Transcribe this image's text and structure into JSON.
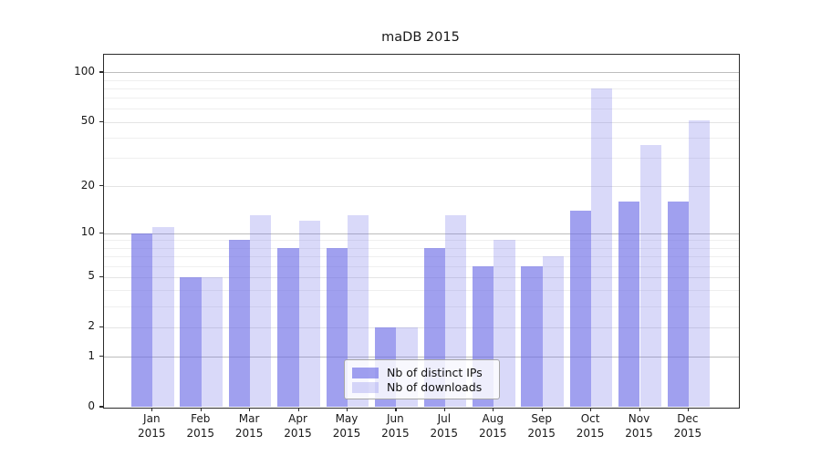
{
  "title": "maDB 2015",
  "chart_data": {
    "type": "bar",
    "title": "maDB 2015",
    "categories": [
      "Jan",
      "Feb",
      "Mar",
      "Apr",
      "May",
      "Jun",
      "Jul",
      "Aug",
      "Sep",
      "Oct",
      "Nov",
      "Dec"
    ],
    "year_label": "2015",
    "series": [
      {
        "name": "Nb of distinct IPs",
        "values": [
          10,
          5,
          9,
          8,
          8,
          2,
          8,
          6,
          6,
          14,
          16,
          16
        ],
        "fill_rgba": "rgba(105,105,230,0.63)",
        "swatch_hex": "#a0a0ef"
      },
      {
        "name": "Nb of downloads",
        "values": [
          11,
          5,
          13,
          12,
          13,
          2,
          13,
          9,
          7,
          80,
          36,
          51
        ],
        "fill_rgba": "rgba(105,105,230,0.25)",
        "swatch_hex": "#d9d9f8"
      }
    ],
    "y_scale": "log1p",
    "y_tick_values": [
      0,
      1,
      2,
      5,
      10,
      20,
      50,
      100
    ],
    "y_tick_labels": [
      "0",
      "1",
      "2",
      "5",
      "10",
      "20",
      "50",
      "100"
    ],
    "y_decade_gridlines": [
      1,
      10,
      100
    ],
    "y_minor_gridlines": [
      3,
      4,
      6,
      7,
      8,
      9,
      30,
      40,
      60,
      70,
      80,
      90
    ],
    "ylim": [
      0,
      128
    ],
    "grid": true,
    "legend_position": "inside-bottom-center",
    "colors": {
      "axis": "#2b2b2b",
      "grid_minor": "#efefef",
      "grid_major": "#e4e4e4",
      "grid_decade": "#bdbdbd"
    }
  }
}
